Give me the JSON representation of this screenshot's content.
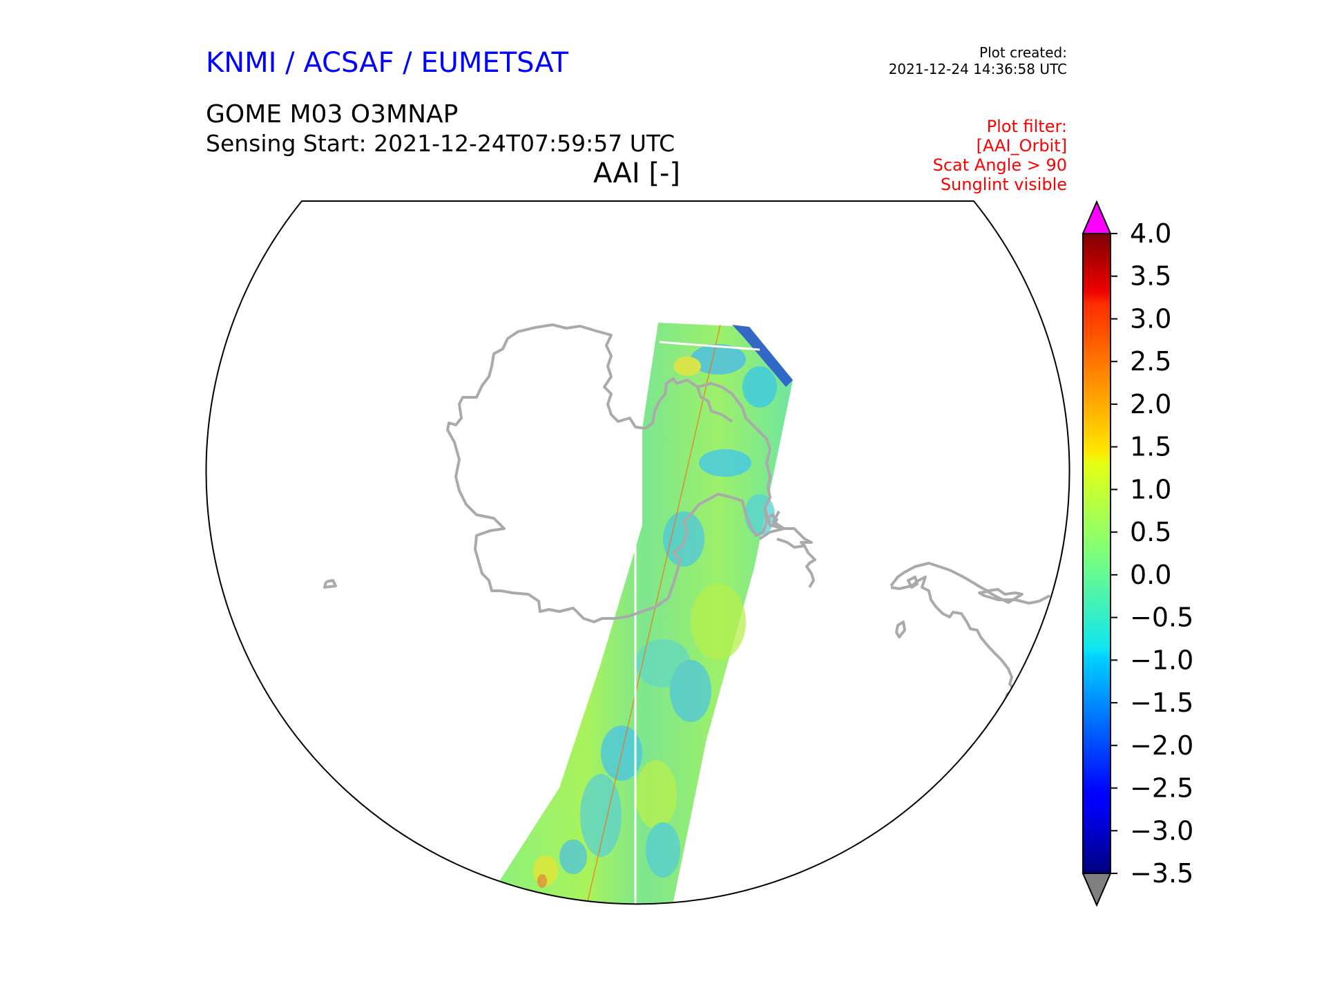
{
  "header": {
    "source": "KNMI / ACSAF / EUMETSAT",
    "created_label": "Plot created:",
    "created_time": "2021-12-24 14:36:58 UTC",
    "product": "GOME M03 O3MNAP",
    "sensing_start": "Sensing Start: 2021-12-24T07:59:57 UTC",
    "variable": "AAI [-]"
  },
  "filter": {
    "lines": [
      "Plot filter:",
      "[AAI_Orbit]",
      "Scat Angle > 90",
      "Sunglint visible"
    ]
  },
  "colorbar": {
    "ticks": [
      "4.0",
      "3.5",
      "3.0",
      "2.5",
      "2.0",
      "1.5",
      "1.0",
      "0.5",
      "0.0",
      "−0.5",
      "−1.0",
      "−1.5",
      "−2.0",
      "−2.5",
      "−3.0",
      "−3.5"
    ],
    "extend_max_color": "#ff00ff",
    "extend_min_color": "#808080",
    "colormap": "jet"
  },
  "map": {
    "projection": "polar stereographic (north)",
    "coastline_color": "#aaaaaa",
    "background_color": "#ffffff"
  }
}
